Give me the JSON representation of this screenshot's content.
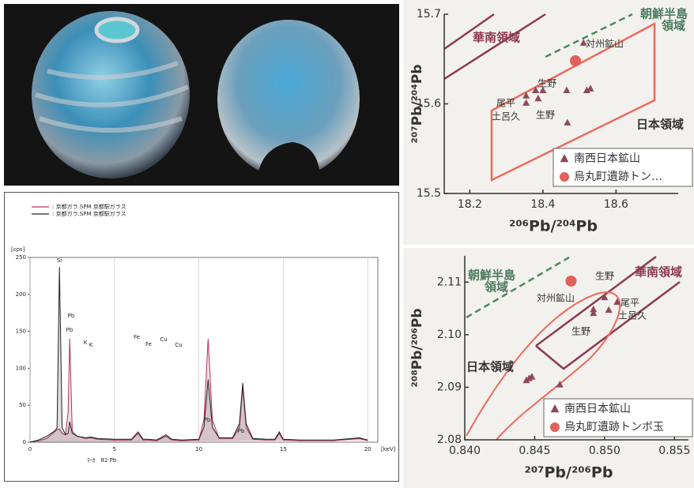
{
  "chart_data": [
    {
      "type": "line",
      "x": [
        0,
        0.5,
        1,
        1.5,
        1.6,
        1.74,
        1.9,
        2.1,
        2.25,
        2.35,
        2.5,
        2.8,
        3.3,
        3.6,
        4,
        5,
        6,
        6.4,
        6.7,
        7,
        7.5,
        8.05,
        8.4,
        9,
        10,
        10.3,
        10.55,
        10.8,
        11.2,
        12,
        12.4,
        12.6,
        12.8,
        13.2,
        14,
        14.5,
        14.76,
        15,
        16,
        18,
        19.5,
        20
      ],
      "series": [
        {
          "name": ": 京都ガラ.SPM  京都駅ガラス",
          "color": "#b5305a",
          "values": [
            0,
            2,
            5,
            15,
            17,
            18,
            12,
            10,
            40,
            140,
            15,
            8,
            5,
            6,
            4,
            3,
            3,
            12,
            3,
            3,
            2,
            8,
            3,
            2,
            3,
            30,
            140,
            30,
            5,
            5,
            20,
            75,
            20,
            4,
            3,
            3,
            12,
            3,
            2,
            2,
            5,
            2
          ]
        },
        {
          "name": ": 京都ガラ.SPM  京都駅ガラス",
          "color": "#222222",
          "values": [
            0,
            3,
            8,
            16,
            20,
            237,
            20,
            10,
            12,
            28,
            12,
            8,
            6,
            7,
            5,
            4,
            4,
            14,
            4,
            4,
            3,
            10,
            4,
            3,
            4,
            20,
            85,
            20,
            6,
            6,
            25,
            80,
            25,
            5,
            4,
            4,
            14,
            4,
            3,
            3,
            6,
            3
          ]
        }
      ],
      "xlim": [
        0,
        20.6
      ],
      "ylim": [
        0,
        250
      ],
      "xticks": [
        0,
        5,
        10,
        15,
        20
      ],
      "yticks": [
        0,
        50,
        100,
        150,
        200,
        250
      ],
      "x_unit": "[keV]",
      "y_unit": "[cps]",
      "annotations": [
        "Si",
        "Pb",
        "Pb",
        "K",
        "K",
        "Fe",
        "Fe",
        "Cu",
        "Cu",
        "Pb",
        "Pb"
      ],
      "marker_text": "ﾏｰｶ　82 Pb"
    },
    {
      "type": "scatter",
      "x_label": "²⁰⁶Pb/²⁰⁴Pb",
      "y_label": "²⁰⁷Pb/²⁰⁴Pb",
      "xlim": [
        18.13,
        18.77
      ],
      "ylim": [
        15.5,
        15.7
      ],
      "xticks": [
        18.2,
        18.4,
        18.6
      ],
      "yticks": [
        15.5,
        15.6,
        15.7
      ],
      "series": [
        {
          "name": "南西日本鉱山",
          "marker": "triangle",
          "color": "#8c4a5c",
          "x": [
            18.511,
            18.354,
            18.38,
            18.4,
            18.387,
            18.354,
            18.465,
            18.52,
            18.53,
            18.467
          ],
          "values": [
            15.668,
            15.609,
            15.615,
            15.615,
            15.606,
            15.601,
            15.615,
            15.615,
            15.617,
            15.579
          ]
        },
        {
          "name": "烏丸町遺跡トン…",
          "marker": "circle",
          "color": "#e0605a",
          "x": [
            18.489
          ],
          "values": [
            15.648
          ]
        }
      ],
      "annotations": [
        "華南領域",
        "朝鮮半島",
        "領域",
        "日本領域",
        "対州鉱山",
        "生野",
        "尾平",
        "土呂久",
        "生野"
      ]
    },
    {
      "type": "scatter",
      "x_label": "²⁰⁷Pb/²⁰⁶Pb",
      "y_label": "²⁰⁸Pb/²⁰⁶Pb",
      "xlim": [
        0.84,
        0.856
      ],
      "ylim": [
        2.08,
        2.115
      ],
      "xticks": [
        {
          "value": 0.84,
          "label": "0.840"
        },
        0.845,
        {
          "value": 0.85,
          "label": "0.850"
        },
        0.855
      ],
      "yticks": [
        2.08,
        2.09,
        {
          "value": 2.1,
          "label": "2.10"
        },
        2.11
      ],
      "series": [
        {
          "name": "南西日本鉱山",
          "marker": "triangle",
          "color": "#8c4a5c",
          "x": [
            0.85,
            0.8492,
            0.8492,
            0.8503,
            0.8509,
            0.8468,
            0.8444,
            0.8446,
            0.8448
          ],
          "values": [
            2.1071,
            2.1048,
            2.1041,
            2.1047,
            2.1062,
            2.0905,
            2.0913,
            2.0917,
            2.092
          ]
        },
        {
          "name": "烏丸町遺跡トンボ玉",
          "marker": "circle",
          "color": "#e0605a",
          "x": [
            0.8476
          ],
          "values": [
            2.1102
          ]
        }
      ],
      "annotations": [
        "朝鮮半島",
        "領域",
        "華南領域",
        "日本領域",
        "生野",
        "対州鉱山",
        "尾平",
        "土呂久",
        "生野"
      ]
    }
  ]
}
